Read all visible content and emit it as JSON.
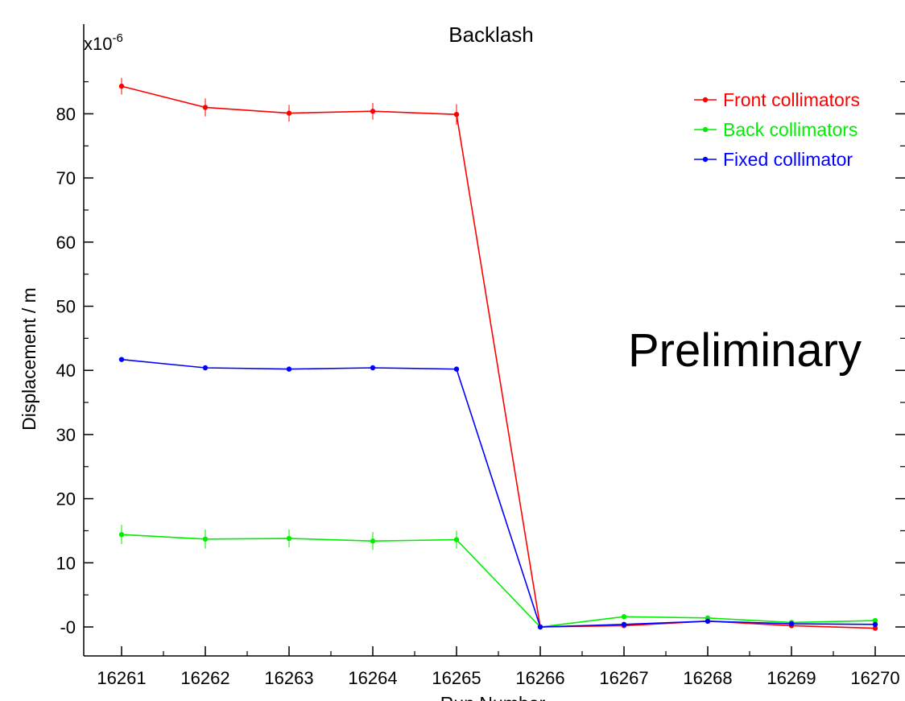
{
  "chart_data": {
    "type": "line",
    "title": "Backlash",
    "xlabel": "Run Number",
    "ylabel": "Displacement / m",
    "y_multiplier_base": "x10",
    "y_multiplier_exp": "-6",
    "annotation": "Preliminary",
    "x": [
      16261,
      16262,
      16263,
      16264,
      16265,
      16266,
      16267,
      16268,
      16269,
      16270
    ],
    "x_tick_labels": [
      "16261",
      "16262",
      "16263",
      "16264",
      "16265",
      "16266",
      "16267",
      "16268",
      "16269",
      "16270"
    ],
    "xlim": [
      16261,
      16270.5
    ],
    "ylim": [
      -4.5,
      91
    ],
    "y_ticks": [
      0,
      10,
      20,
      30,
      40,
      50,
      60,
      70,
      80
    ],
    "y_tick_labels": [
      "-0",
      "10",
      "20",
      "30",
      "40",
      "50",
      "60",
      "70",
      "80"
    ],
    "y_minor_step": 5,
    "grid": false,
    "legend_position": "top-right",
    "series": [
      {
        "name": "Front collimators",
        "color": "#ff0000",
        "values": [
          84.3,
          81.0,
          80.1,
          80.4,
          79.9,
          0.0,
          0.2,
          0.9,
          0.2,
          -0.2
        ],
        "errors": [
          1.3,
          1.4,
          1.3,
          1.3,
          1.6,
          0.2,
          0.2,
          0.2,
          0.2,
          0.2
        ]
      },
      {
        "name": "Back collimators",
        "color": "#00ee00",
        "values": [
          14.4,
          13.7,
          13.8,
          13.4,
          13.6,
          0.0,
          1.6,
          1.4,
          0.7,
          1.0
        ],
        "errors": [
          1.5,
          1.5,
          1.4,
          1.4,
          1.4,
          0.2,
          0.2,
          0.2,
          0.2,
          0.2
        ]
      },
      {
        "name": "Fixed collimator",
        "color": "#0000ff",
        "values": [
          41.7,
          40.4,
          40.2,
          40.4,
          40.2,
          0.0,
          0.4,
          0.9,
          0.5,
          0.4
        ],
        "errors": [
          0.3,
          0.3,
          0.3,
          0.3,
          0.3,
          0.2,
          0.2,
          0.2,
          0.2,
          0.2
        ]
      }
    ]
  }
}
